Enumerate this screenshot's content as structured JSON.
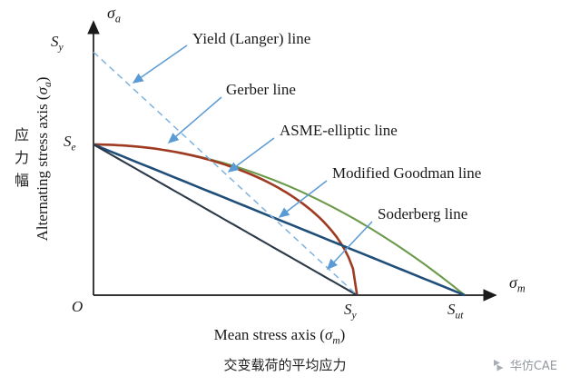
{
  "captions": {
    "left_vertical_cn": "应力幅",
    "bottom_cn": "交变载荷的平均应力"
  },
  "watermark": {
    "text": "华仿CAE"
  },
  "chart_data": {
    "type": "line",
    "title": "",
    "axes": {
      "grid": false,
      "legend": "inline-annotations",
      "x": {
        "symbol": {
          "base": "σ",
          "sub": "m"
        },
        "title": {
          "pre": "Mean stress axis (",
          "sym": "σ",
          "sub": "m",
          "post": ")"
        },
        "range_normalized": [
          0,
          1.08
        ]
      },
      "y": {
        "symbol": {
          "base": "σ",
          "sub": "a"
        },
        "title": {
          "pre": "Alternating stress axis (",
          "sym": "σ",
          "sub": "a",
          "post": ")"
        },
        "range_normalized": [
          0,
          0.82
        ]
      }
    },
    "points": {
      "origin": "O",
      "se_y": {
        "base": "S",
        "sub": "e"
      },
      "sy_y": {
        "base": "S",
        "sub": "y"
      },
      "sy_x": {
        "base": "S",
        "sub": "y"
      },
      "sut_x": {
        "base": "S",
        "sub": "ut"
      }
    },
    "params_normalized": {
      "Se": 0.44,
      "Sy": 0.71,
      "Sut": 1.0
    },
    "series": [
      {
        "name": "Yield (Langer) line",
        "shape": "linear",
        "y_intercept": "Sy",
        "x_intercept": "Sy",
        "dashed": true,
        "color": "#7fb2e0"
      },
      {
        "name": "Gerber line",
        "shape": "parabola",
        "y_intercept": "Se",
        "x_intercept": "Sut",
        "dashed": false,
        "color": "#6b9a4b"
      },
      {
        "name": "ASME-elliptic line",
        "shape": "ellipse",
        "y_intercept": "Se",
        "x_intercept": "Sy",
        "dashed": false,
        "color": "#9e3b22"
      },
      {
        "name": "Modified Goodman line",
        "shape": "linear",
        "y_intercept": "Se",
        "x_intercept": "Sut",
        "dashed": false,
        "color": "#1f4e79"
      },
      {
        "name": "Soderberg line",
        "shape": "linear",
        "y_intercept": "Se",
        "x_intercept": "Sy",
        "dashed": false,
        "color": "#2b3949"
      }
    ],
    "annotation_arrow_color": "#5b9bd5",
    "axis_color": "#1a1a1a"
  }
}
